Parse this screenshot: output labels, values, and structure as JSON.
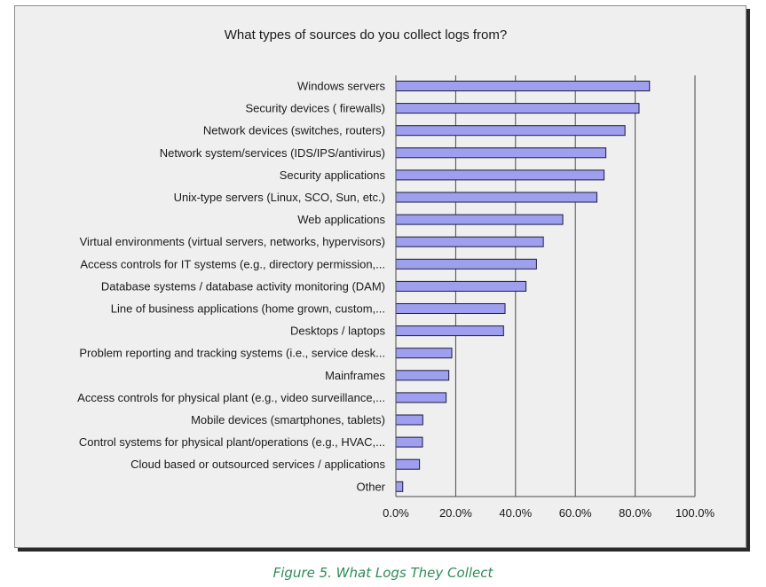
{
  "chart_data": {
    "type": "bar",
    "orientation": "horizontal",
    "title": "What types of sources do you collect logs from?",
    "xlabel": "",
    "ylabel": "",
    "xlim": [
      0,
      100
    ],
    "tick_labels": [
      "0.0%",
      "20.0%",
      "40.0%",
      "60.0%",
      "80.0%",
      "100.0%"
    ],
    "grid": true,
    "categories": [
      "Windows servers",
      "Security devices ( firewalls)",
      "Network devices (switches, routers)",
      "Network system/services (IDS/IPS/antivirus)",
      "Security applications",
      "Unix-type servers (Linux, SCO, Sun, etc.)",
      "Web applications",
      "Virtual environments (virtual servers, networks, hypervisors)",
      "Access controls for IT systems (e.g., directory permission,...",
      "Database systems / database activity monitoring (DAM)",
      "Line of business applications (home grown, custom,...",
      "Desktops / laptops",
      "Problem reporting and tracking systems (i.e., service desk...",
      "Mainframes",
      "Access controls for physical plant (e.g., video surveillance,...",
      "Mobile devices (smartphones, tablets)",
      "Control systems for physical plant/operations (e.g., HVAC,...",
      "Cloud based or outsourced services / applications",
      "Other"
    ],
    "values": [
      84.8,
      81.3,
      76.6,
      70.2,
      69.6,
      67.2,
      55.8,
      49.3,
      47.0,
      43.5,
      36.5,
      36.0,
      18.7,
      17.7,
      16.8,
      9.0,
      8.9,
      7.9,
      2.3
    ],
    "bar_color": "#9f9ff0",
    "bar_edge_color": "#1a1a40"
  },
  "caption": "Figure 5. What Logs They Collect"
}
